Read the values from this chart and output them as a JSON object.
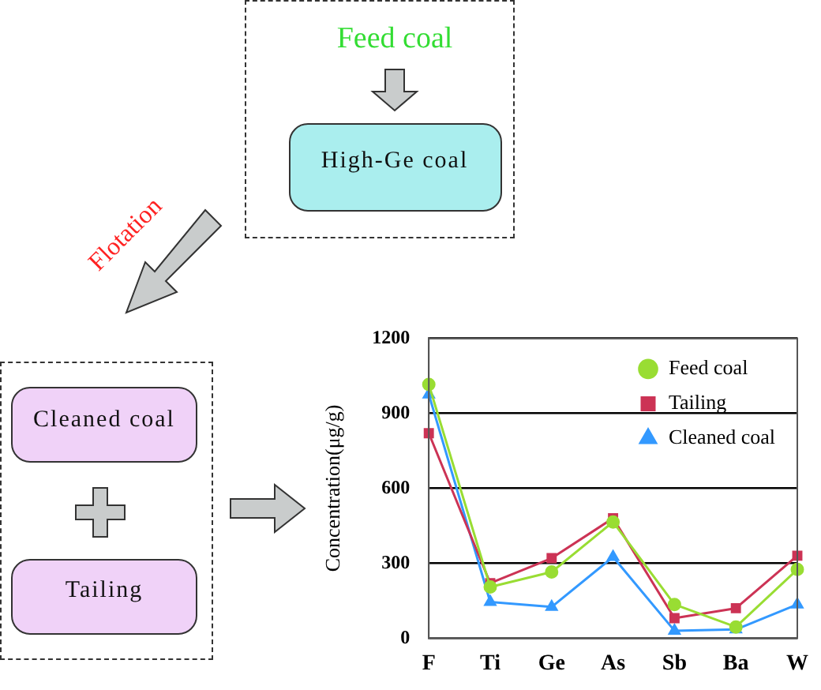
{
  "chart_data": {
    "type": "line",
    "ylabel": "Concentration(μg/g)",
    "categories": [
      "F",
      "Ti",
      "Ge",
      "As",
      "Sb",
      "Ba",
      "W"
    ],
    "series": [
      {
        "name": "Cleaned coal",
        "color": "#3399ff",
        "marker": "triangle",
        "values": [
          975,
          145,
          125,
          325,
          30,
          35,
          135
        ]
      },
      {
        "name": "Tailing",
        "color": "#cc3355",
        "marker": "square",
        "values": [
          820,
          220,
          320,
          480,
          80,
          120,
          330
        ]
      },
      {
        "name": "Feed coal",
        "color": "#99dd33",
        "marker": "circle",
        "values": [
          1015,
          205,
          265,
          465,
          135,
          45,
          275
        ]
      }
    ],
    "ylim": [
      0,
      1200
    ],
    "yticks": [
      0,
      300,
      600,
      900,
      1200
    ],
    "grid": "y",
    "legend": "top right",
    "annotations": [
      "Feed coal",
      "High-Ge coal",
      "Flotation",
      "Cleaned coal",
      "Tailing"
    ]
  }
}
